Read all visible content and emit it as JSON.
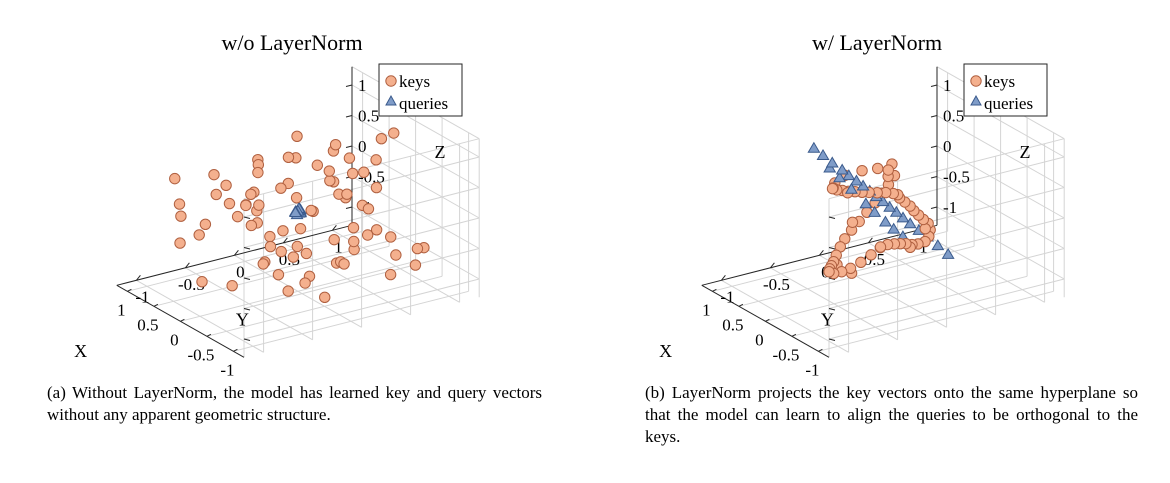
{
  "chart_data": [
    {
      "type": "scatter",
      "title": "w/o LayerNorm",
      "xlabel": "X",
      "ylabel": "Y",
      "zlabel": "Z",
      "x_ticks": [
        "-1",
        "-0.5",
        "0",
        "0.5",
        "1"
      ],
      "y_ticks": [
        "-1",
        "-0.5",
        "0",
        "0.5",
        "1"
      ],
      "z_ticks": [
        "-1",
        "-0.5",
        "0",
        "0.5",
        "1"
      ],
      "xlim": [
        -1.2,
        1.2
      ],
      "ylim": [
        -1.2,
        1.2
      ],
      "zlim": [
        -1.3,
        1.3
      ],
      "grid": true,
      "legend_position": "top-right",
      "series": [
        {
          "name": "keys",
          "marker": "circle",
          "color": "#f4b08e",
          "edge": "#b06040",
          "points": [
            [
              0.55,
              -0.96,
              0.67
            ],
            [
              -0.97,
              -0.37,
              0.64
            ],
            [
              0.13,
              -0.35,
              0.1
            ],
            [
              -0.58,
              0.05,
              0.76
            ],
            [
              0.15,
              0.8,
              -0.35
            ],
            [
              0.3,
              0.72,
              0.19
            ],
            [
              0.71,
              0.41,
              -0.79
            ],
            [
              0.58,
              -0.89,
              -0.43
            ],
            [
              0.96,
              -0.18,
              -0.26
            ],
            [
              0.78,
              0.4,
              0.34
            ],
            [
              -0.37,
              0.27,
              -0.78
            ],
            [
              -0.15,
              0.77,
              0.96
            ],
            [
              -0.49,
              0.06,
              0.73
            ],
            [
              0.81,
              -0.57,
              -0.54
            ],
            [
              0.61,
              0.32,
              0.81
            ],
            [
              -0.18,
              0.32,
              0.25
            ],
            [
              -0.09,
              0.95,
              -1.05
            ],
            [
              0.92,
              0.4,
              0.28
            ],
            [
              0.11,
              -0.92,
              -0.82
            ],
            [
              -0.47,
              -0.73,
              0.31
            ],
            [
              0.39,
              -0.07,
              -0.73
            ],
            [
              0.96,
              0.11,
              0.13
            ],
            [
              -0.26,
              -0.34,
              -0.76
            ],
            [
              -0.39,
              0.5,
              -0.39
            ],
            [
              -0.8,
              -0.16,
              -0.94
            ],
            [
              -0.73,
              0.89,
              -0.59
            ],
            [
              0.61,
              -0.08,
              0.59
            ],
            [
              -0.95,
              -0.12,
              -0.32
            ],
            [
              0.73,
              -0.01,
              0.42
            ],
            [
              0.25,
              0.66,
              0.49
            ],
            [
              0.85,
              0.06,
              -0.33
            ],
            [
              0.96,
              -0.69,
              -0.06
            ],
            [
              -0.14,
              -0.91,
              0.73
            ],
            [
              -0.3,
              -0.09,
              -0.98
            ],
            [
              -0.65,
              0.32,
              0.84
            ],
            [
              -0.46,
              -0.42,
              -0.25
            ],
            [
              -0.05,
              0.95,
              0.93
            ],
            [
              -0.64,
              0.6,
              -0.34
            ],
            [
              0.32,
              0.97,
              0.3
            ],
            [
              0.26,
              0.51,
              -0.79
            ],
            [
              -0.35,
              0.13,
              0.79
            ],
            [
              -0.03,
              -0.75,
              0.76
            ],
            [
              -0.77,
              0.15,
              0.06
            ],
            [
              -0.56,
              0.27,
              -0.45
            ],
            [
              -0.6,
              -0.74,
              0.42
            ],
            [
              -0.22,
              0.45,
              -0.56
            ],
            [
              0.35,
              0.09,
              0.26
            ],
            [
              -0.75,
              0.03,
              -0.46
            ],
            [
              -0.52,
              -0.62,
              -0.31
            ],
            [
              0.64,
              -0.27,
              -0.28
            ],
            [
              -0.61,
              -0.43,
              -0.82
            ],
            [
              -0.7,
              0.84,
              -0.6
            ],
            [
              0.43,
              -0.3,
              0.02
            ],
            [
              -0.84,
              -0.32,
              0.57
            ],
            [
              0.73,
              -0.8,
              -0.1
            ],
            [
              0.84,
              0.44,
              -0.36
            ],
            [
              -0.86,
              0.48,
              -0.8
            ],
            [
              0.97,
              0.35,
              -0.23
            ],
            [
              0.64,
              0.73,
              0.49
            ],
            [
              -0.8,
              0.37,
              -0.05
            ],
            [
              0.15,
              0.58,
              -0.02
            ],
            [
              0.2,
              0.47,
              0.71
            ],
            [
              -0.69,
              -0.38,
              -0.07
            ],
            [
              0.12,
              -0.88,
              0.1
            ],
            [
              -0.39,
              0.59,
              0.35
            ],
            [
              0.19,
              0.3,
              0.55
            ],
            [
              -0.75,
              0.08,
              0.57
            ],
            [
              -0.2,
              -0.78,
              -0.79
            ],
            [
              -0.24,
              -0.58,
              0.68
            ],
            [
              0.05,
              -0.26,
              -0.32
            ],
            [
              0.26,
              -0.39,
              0.15
            ],
            [
              0.31,
              0.12,
              -0.94
            ],
            [
              -0.94,
              0.69,
              -0.69
            ],
            [
              0.23,
              -0.23,
              -0.87
            ],
            [
              -0.55,
              -0.18,
              -0.71
            ],
            [
              0.79,
              -0.43,
              0.4
            ],
            [
              -0.42,
              0.43,
              0.14
            ],
            [
              -0.75,
              -0.32,
              -0.18
            ],
            [
              0.15,
              -0.4,
              0.38
            ],
            [
              0.82,
              0.29,
              -0.83
            ]
          ]
        },
        {
          "name": "queries",
          "marker": "triangle",
          "color": "#7f9cc8",
          "edge": "#3a5a8c",
          "points": [
            [
              0,
              0,
              0.02
            ],
            [
              0.02,
              0.01,
              0
            ],
            [
              -0.02,
              0,
              -0.01
            ],
            [
              0.01,
              -0.02,
              0.01
            ],
            [
              -0.01,
              0.02,
              0.03
            ],
            [
              0.03,
              -0.01,
              -0.02
            ],
            [
              -0.03,
              0.01,
              0.01
            ],
            [
              0.01,
              0.03,
              -0.03
            ],
            [
              -0.02,
              -0.03,
              0.02
            ],
            [
              0.02,
              0.02,
              0.04
            ],
            [
              0,
              -0.01,
              -0.04
            ],
            [
              -0.01,
              0.01,
              0.05
            ]
          ]
        }
      ]
    },
    {
      "type": "scatter",
      "title": "w/ LayerNorm",
      "xlabel": "X",
      "ylabel": "Y",
      "zlabel": "Z",
      "x_ticks": [
        "-1",
        "-0.5",
        "0",
        "0.5",
        "1"
      ],
      "y_ticks": [
        "-1",
        "-0.5",
        "0",
        "0.5",
        "1"
      ],
      "z_ticks": [
        "-1",
        "-0.5",
        "0",
        "0.5",
        "1"
      ],
      "xlim": [
        -1.2,
        1.2
      ],
      "ylim": [
        -1.2,
        1.2
      ],
      "zlim": [
        -1.3,
        1.3
      ],
      "grid": true,
      "legend_position": "top-right",
      "series": [
        {
          "name": "keys",
          "marker": "circle",
          "color": "#f4b08e",
          "edge": "#b06040",
          "points": [
            [
              -0.66,
              -0.24,
              1.02
            ],
            [
              -0.75,
              -0.35,
              0.96
            ],
            [
              -0.81,
              -0.45,
              0.89
            ],
            [
              -0.85,
              -0.54,
              0.79
            ],
            [
              -0.88,
              -0.64,
              0.69
            ],
            [
              -0.92,
              -0.74,
              0.6
            ],
            [
              -0.96,
              -0.84,
              0.52
            ],
            [
              -0.98,
              -0.92,
              0.42
            ],
            [
              -0.97,
              -0.96,
              0.3
            ],
            [
              -0.93,
              -0.98,
              0.15
            ],
            [
              -0.88,
              -0.98,
              0.02
            ],
            [
              -0.82,
              -0.97,
              -0.08
            ],
            [
              -0.77,
              -0.96,
              -0.16
            ],
            [
              -0.72,
              -0.94,
              -0.24
            ],
            [
              -0.66,
              -0.86,
              -0.33
            ],
            [
              -0.57,
              -0.73,
              -0.4
            ],
            [
              -0.46,
              -0.58,
              -0.46
            ],
            [
              -0.34,
              -0.41,
              -0.49
            ],
            [
              -0.2,
              -0.23,
              -0.51
            ],
            [
              -0.06,
              -0.06,
              -0.53
            ],
            [
              0.08,
              0.09,
              -0.61
            ],
            [
              0.21,
              0.23,
              -0.72
            ],
            [
              0.32,
              0.35,
              -0.82
            ],
            [
              0.4,
              0.45,
              -0.9
            ],
            [
              0.47,
              0.55,
              -0.99
            ],
            [
              0.56,
              0.66,
              -1.07
            ],
            [
              0.63,
              0.77,
              -1.11
            ],
            [
              0.67,
              0.83,
              -1.07
            ],
            [
              0.7,
              0.86,
              -0.99
            ],
            [
              0.72,
              0.85,
              -0.89
            ],
            [
              0.7,
              0.79,
              -0.79
            ],
            [
              0.66,
              0.72,
              -0.67
            ],
            [
              0.62,
              0.65,
              -0.55
            ],
            [
              0.58,
              0.59,
              -0.43
            ],
            [
              0.55,
              0.52,
              -0.32
            ],
            [
              0.52,
              0.45,
              -0.21
            ],
            [
              0.49,
              0.37,
              -0.09
            ],
            [
              0.43,
              0.26,
              0
            ],
            [
              0.35,
              0.13,
              0.09
            ],
            [
              0.28,
              0.01,
              0.18
            ],
            [
              0.21,
              -0.1,
              0.26
            ],
            [
              0.14,
              -0.21,
              0.35
            ],
            [
              0.06,
              -0.32,
              0.44
            ],
            [
              -0.01,
              -0.42,
              0.53
            ],
            [
              -0.09,
              -0.52,
              0.62
            ],
            [
              -0.15,
              -0.59,
              0.71
            ],
            [
              -0.2,
              -0.6,
              0.82
            ],
            [
              -0.28,
              -0.54,
              0.96
            ],
            [
              -0.4,
              -0.43,
              1.05
            ],
            [
              -0.51,
              -0.33,
              1.1
            ],
            [
              -0.58,
              -0.26,
              1.08
            ],
            [
              -0.52,
              -0.19,
              1.12
            ],
            [
              -0.94,
              -0.82,
              0.63
            ],
            [
              -0.87,
              -0.94,
              -0.05
            ],
            [
              -0.48,
              -0.58,
              -0.53
            ],
            [
              0.01,
              -0.02,
              -0.57
            ],
            [
              0.43,
              0.51,
              -1
            ],
            [
              0.7,
              0.81,
              -0.95
            ],
            [
              0.48,
              0.41,
              -0.12
            ],
            [
              0.13,
              -0.29,
              0.37
            ],
            [
              -0.12,
              -0.58,
              0.68
            ],
            [
              -0.67,
              -0.31,
              1.04
            ]
          ]
        },
        {
          "name": "queries",
          "marker": "triangle",
          "color": "#7f9cc8",
          "edge": "#3a5a8c",
          "points": [
            [
              -0.6,
              0.34,
              -0.54
            ],
            [
              -0.48,
              0.3,
              -0.44
            ],
            [
              -0.36,
              0.26,
              -0.34
            ],
            [
              -0.27,
              0.22,
              -0.26
            ],
            [
              -0.18,
              0.18,
              -0.18
            ],
            [
              -0.1,
              0.15,
              -0.11
            ],
            [
              -0.03,
              0.12,
              -0.04
            ],
            [
              0.04,
              0.09,
              0.02
            ],
            [
              0.11,
              0.06,
              0.09
            ],
            [
              0.18,
              0.03,
              0.15
            ],
            [
              0.25,
              0,
              0.22
            ],
            [
              0.32,
              -0.03,
              0.28
            ],
            [
              0.39,
              -0.06,
              0.34
            ],
            [
              0.46,
              -0.1,
              0.41
            ],
            [
              0.53,
              -0.13,
              0.48
            ],
            [
              0.68,
              -0.15,
              0.53
            ],
            [
              0.78,
              -0.19,
              0.62
            ],
            [
              0.86,
              -0.24,
              0.72
            ],
            [
              -0.32,
              0.03,
              -0.26
            ],
            [
              -0.22,
              -0.01,
              -0.17
            ],
            [
              -0.12,
              -0.04,
              -0.09
            ],
            [
              0.01,
              -0.08,
              0.02
            ],
            [
              0.12,
              -0.11,
              0.12
            ],
            [
              0.3,
              -0.16,
              0.29
            ],
            [
              0.45,
              -0.2,
              0.42
            ],
            [
              0.58,
              -0.23,
              0.53
            ]
          ]
        }
      ]
    }
  ],
  "legend": {
    "keys": "keys",
    "queries": "queries"
  },
  "captions": {
    "a": "(a) Without LayerNorm, the model has learned key and query vectors without any apparent geometric structure.",
    "b": "(b) LayerNorm projects the key vectors onto the same hyperplane so that the model can learn to align the queries to be orthogonal to the keys."
  }
}
